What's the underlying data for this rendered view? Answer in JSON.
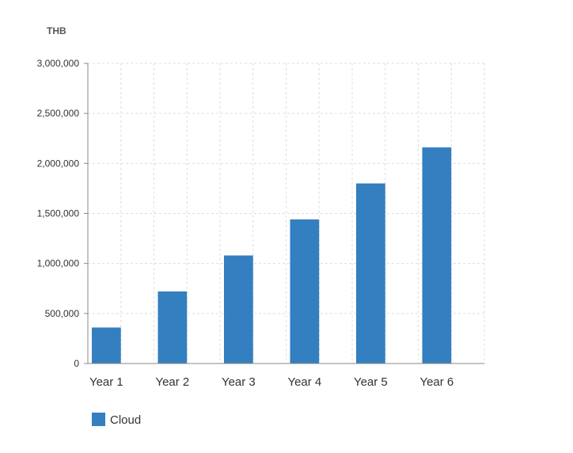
{
  "chart_data": {
    "type": "bar",
    "title": "",
    "xlabel": "",
    "ylabel": "THB",
    "categories": [
      "Year 1",
      "Year 2",
      "Year 3",
      "Year 4",
      "Year 5",
      "Year 6"
    ],
    "series": [
      {
        "name": "Cloud",
        "values": [
          360000,
          720000,
          1080000,
          1440000,
          1800000,
          2160000
        ],
        "color": "#337fc0"
      }
    ],
    "ylim": [
      0,
      3000000
    ],
    "yticks": [
      0,
      500000,
      1000000,
      1500000,
      2000000,
      2500000,
      3000000
    ],
    "ytick_labels": [
      "0",
      "500,000",
      "1,000,000",
      "1,500,000",
      "2,000,000",
      "2,500,000",
      "3,000,000"
    ],
    "grid": true,
    "legend_position": "bottom-left"
  }
}
